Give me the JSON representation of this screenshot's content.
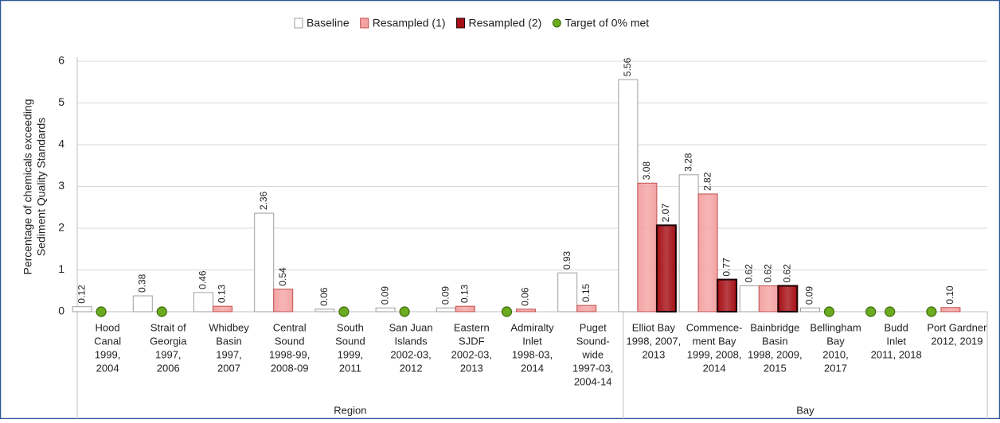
{
  "chart_data": {
    "type": "bar",
    "ylabel": [
      "Percentage  of chemicals exceeding",
      "Sediment Quality Standards"
    ],
    "groups": [
      {
        "label": "Region",
        "categories": [
          [
            "Hood",
            "Canal",
            "1999,",
            "2004"
          ],
          [
            "Strait of",
            "Georgia",
            "1997,",
            "2006"
          ],
          [
            "Whidbey",
            "Basin",
            "1997,",
            "2007"
          ],
          [
            "Central",
            "Sound",
            "1998-99,",
            "2008-09"
          ],
          [
            "South",
            "Sound",
            "1999,",
            "2011"
          ],
          [
            "San Juan",
            "Islands",
            "2002-03,",
            "2012"
          ],
          [
            "Eastern",
            "SJDF",
            "2002-03,",
            "2013"
          ],
          [
            "Admiralty",
            "Inlet",
            "1998-03,",
            "2014"
          ],
          [
            "Puget",
            "Sound-",
            "wide",
            "1997-03,",
            "2004-14"
          ]
        ]
      },
      {
        "label": "Bay",
        "categories": [
          [
            "Elliot Bay",
            "1998, 2007,",
            "2013"
          ],
          [
            "Commence-",
            "ment Bay",
            "1999, 2008,",
            "2014"
          ],
          [
            "Bainbridge",
            "Basin",
            "1998, 2009,",
            "2015"
          ],
          [
            "Bellingham",
            "Bay",
            "2010,",
            "2017"
          ],
          [
            "Budd",
            "Inlet",
            "2011, 2018"
          ],
          [
            "Port Gardner",
            "2012, 2019"
          ]
        ]
      }
    ],
    "series": [
      {
        "name": "Baseline",
        "color": "#ffffff",
        "stroke": "#9e9e9e",
        "values": [
          0.12,
          0.38,
          0.46,
          2.36,
          0.06,
          0.09,
          0.09,
          0,
          0.93,
          5.56,
          3.28,
          0.62,
          0.09,
          0,
          0
        ]
      },
      {
        "name": "Resampled (1)",
        "color": "#f4a3a3",
        "stroke": "#c0504d",
        "values": [
          0,
          0,
          0.13,
          0.54,
          0,
          0,
          0.13,
          0.06,
          0.15,
          3.08,
          2.82,
          0.62,
          0,
          0,
          0.1
        ],
        "value_labels": [
          null,
          null,
          null,
          null,
          null,
          null,
          null,
          null,
          null,
          null,
          null,
          null,
          null,
          null,
          "0.10"
        ]
      },
      {
        "name": "Resampled (2)",
        "color": "#a50f15",
        "stroke": "#1a0000",
        "values": [
          null,
          null,
          null,
          null,
          null,
          null,
          null,
          null,
          null,
          2.07,
          0.77,
          0.62,
          null,
          null,
          null
        ]
      }
    ],
    "target": {
      "name": "Target of 0% met",
      "color": "#6aab1f"
    },
    "ylim": [
      0,
      6
    ],
    "yticks": [
      0,
      1,
      2,
      3,
      4,
      5,
      6
    ],
    "grid": true
  }
}
